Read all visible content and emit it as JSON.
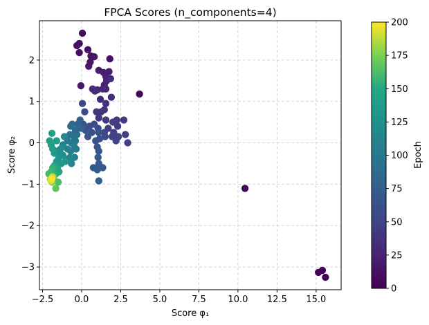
{
  "chart_data": {
    "type": "scatter",
    "title": "FPCA Scores (n_components=4)",
    "xlabel": "Score φ₁",
    "ylabel": "Score φ₂",
    "xlim": [
      -2.7,
      16.6
    ],
    "ylim": [
      -3.55,
      2.95
    ],
    "xticks": [
      -2.5,
      0.0,
      2.5,
      5.0,
      7.5,
      10.0,
      12.5,
      15.0
    ],
    "xtick_labels": [
      "−2.5",
      "0.0",
      "2.5",
      "5.0",
      "7.5",
      "10.0",
      "12.5",
      "15.0"
    ],
    "yticks": [
      -3,
      -2,
      -1,
      0,
      1,
      2
    ],
    "ytick_labels": [
      "−3",
      "−2",
      "−1",
      "0",
      "1",
      "2"
    ],
    "grid": true,
    "grid_style": "dashed",
    "colormap": "viridis",
    "colorbar": {
      "label": "Epoch",
      "range": [
        0,
        200
      ],
      "ticks": [
        0,
        25,
        50,
        75,
        100,
        125,
        150,
        175,
        200
      ],
      "tick_labels": [
        "0",
        "25",
        "50",
        "75",
        "100",
        "125",
        "150",
        "175",
        "200"
      ]
    },
    "points": [
      [
        15.6,
        -3.25,
        2
      ],
      [
        15.4,
        -3.08,
        3
      ],
      [
        15.15,
        -3.13,
        4
      ],
      [
        10.45,
        -1.1,
        5
      ],
      [
        3.7,
        1.18,
        6
      ],
      [
        0.05,
        2.65,
        8
      ],
      [
        -0.15,
        2.4,
        9
      ],
      [
        -0.3,
        2.35,
        10
      ],
      [
        -0.15,
        2.18,
        11
      ],
      [
        0.4,
        2.25,
        12
      ],
      [
        0.6,
        2.1,
        13
      ],
      [
        0.8,
        2.08,
        14
      ],
      [
        0.55,
        1.95,
        15
      ],
      [
        0.45,
        1.85,
        16
      ],
      [
        1.8,
        2.03,
        12
      ],
      [
        -0.05,
        1.38,
        18
      ],
      [
        1.1,
        1.75,
        20
      ],
      [
        1.4,
        1.7,
        21
      ],
      [
        1.55,
        1.6,
        22
      ],
      [
        1.75,
        1.72,
        23
      ],
      [
        1.6,
        1.5,
        24
      ],
      [
        1.45,
        1.4,
        25
      ],
      [
        1.7,
        1.55,
        26
      ],
      [
        1.55,
        1.3,
        27
      ],
      [
        1.35,
        1.3,
        28
      ],
      [
        1.0,
        1.28,
        29
      ],
      [
        0.7,
        1.3,
        30
      ],
      [
        1.85,
        1.55,
        31
      ],
      [
        1.9,
        1.1,
        32
      ],
      [
        1.2,
        1.05,
        33
      ],
      [
        0.85,
        1.25,
        34
      ],
      [
        1.55,
        0.95,
        35
      ],
      [
        1.45,
        0.8,
        36
      ],
      [
        1.25,
        0.75,
        38
      ],
      [
        0.95,
        0.75,
        39
      ],
      [
        1.1,
        0.6,
        40
      ],
      [
        1.55,
        0.55,
        41
      ],
      [
        2.25,
        0.55,
        42
      ],
      [
        2.7,
        0.55,
        43
      ],
      [
        2.3,
        0.4,
        44
      ],
      [
        2.0,
        0.5,
        45
      ],
      [
        1.7,
        0.35,
        46
      ],
      [
        2.05,
        0.25,
        47
      ],
      [
        2.8,
        0.2,
        48
      ],
      [
        2.35,
        0.15,
        49
      ],
      [
        2.2,
        0.05,
        50
      ],
      [
        2.95,
        0.0,
        51
      ],
      [
        1.95,
        0.15,
        52
      ],
      [
        1.45,
        0.25,
        53
      ],
      [
        1.5,
        0.15,
        54
      ],
      [
        0.05,
        0.95,
        55
      ],
      [
        0.2,
        0.75,
        56
      ],
      [
        1.05,
        0.35,
        57
      ],
      [
        0.8,
        0.45,
        58
      ],
      [
        0.5,
        0.4,
        60
      ],
      [
        0.65,
        0.25,
        61
      ],
      [
        1.15,
        0.1,
        62
      ],
      [
        0.9,
        0.05,
        63
      ],
      [
        1.1,
        0.25,
        64
      ],
      [
        0.4,
        0.15,
        65
      ],
      [
        0.25,
        0.3,
        66
      ],
      [
        0.1,
        0.45,
        67
      ],
      [
        1.0,
        -0.1,
        68
      ],
      [
        1.1,
        -0.2,
        69
      ],
      [
        1.05,
        -0.35,
        70
      ],
      [
        1.1,
        -0.5,
        71
      ],
      [
        1.35,
        -0.6,
        72
      ],
      [
        1.0,
        -0.65,
        73
      ],
      [
        0.75,
        -0.6,
        74
      ],
      [
        1.1,
        -0.92,
        75
      ],
      [
        -0.1,
        0.55,
        78
      ],
      [
        -0.25,
        0.45,
        80
      ],
      [
        -0.05,
        0.35,
        82
      ],
      [
        -0.4,
        0.3,
        84
      ],
      [
        -0.6,
        0.45,
        86
      ],
      [
        -0.7,
        0.4,
        88
      ],
      [
        -0.3,
        0.2,
        90
      ],
      [
        -0.5,
        0.15,
        92
      ],
      [
        -0.75,
        0.2,
        94
      ],
      [
        -0.4,
        0.05,
        96
      ],
      [
        -0.65,
        0.0,
        98
      ],
      [
        -0.9,
        0.05,
        100
      ],
      [
        -0.5,
        -0.05,
        102
      ],
      [
        -0.35,
        -0.15,
        104
      ],
      [
        -0.7,
        -0.2,
        106
      ],
      [
        -0.9,
        -0.15,
        108
      ],
      [
        -0.45,
        -0.35,
        110
      ],
      [
        -0.75,
        -0.35,
        112
      ],
      [
        -0.95,
        -0.4,
        114
      ],
      [
        -0.65,
        -0.5,
        116
      ],
      [
        -1.2,
        -0.05,
        115
      ],
      [
        -1.1,
        0.15,
        118
      ],
      [
        -1.35,
        -0.15,
        120
      ],
      [
        -1.55,
        -0.2,
        122
      ],
      [
        -1.2,
        -0.3,
        124
      ],
      [
        -1.45,
        -0.35,
        126
      ],
      [
        -1.05,
        -0.45,
        128
      ],
      [
        -1.3,
        -0.5,
        130
      ],
      [
        -1.6,
        -0.45,
        132
      ],
      [
        -1.75,
        -0.25,
        135
      ],
      [
        -1.85,
        -0.15,
        138
      ],
      [
        -1.95,
        -0.05,
        140
      ],
      [
        -2.05,
        0.05,
        142
      ],
      [
        -1.6,
        0.05,
        140
      ],
      [
        -1.9,
        0.23,
        145
      ],
      [
        -1.55,
        -0.6,
        146
      ],
      [
        -1.75,
        -0.55,
        148
      ],
      [
        -1.45,
        -0.7,
        150
      ],
      [
        -1.65,
        -0.75,
        152
      ],
      [
        -1.85,
        -0.6,
        155
      ],
      [
        -1.95,
        -0.7,
        158
      ],
      [
        -2.1,
        -0.75,
        160
      ],
      [
        -1.5,
        -0.95,
        162
      ],
      [
        -1.75,
        -0.9,
        165
      ],
      [
        -1.65,
        -1.1,
        168
      ],
      [
        -1.9,
        -0.95,
        175
      ],
      [
        -2.0,
        -0.88,
        180
      ],
      [
        -1.85,
        -0.82,
        185
      ],
      [
        -1.95,
        -0.92,
        190
      ],
      [
        -1.9,
        -0.85,
        195
      ],
      [
        -1.92,
        -0.88,
        198
      ]
    ]
  }
}
